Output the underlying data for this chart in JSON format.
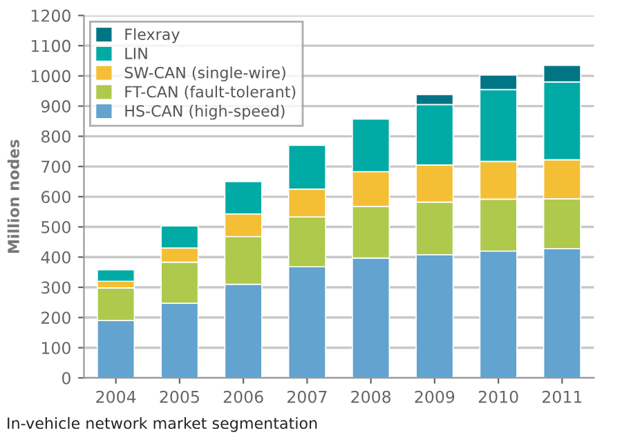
{
  "chart_data": {
    "type": "bar",
    "stacked": true,
    "ylabel": "Million nodes",
    "categories": [
      "2004",
      "2005",
      "2006",
      "2007",
      "2008",
      "2009",
      "2010",
      "2011"
    ],
    "series": [
      {
        "name": "HS-CAN (high-speed)",
        "color": "#62a3d0",
        "values": [
          190,
          247,
          310,
          368,
          397,
          408,
          420,
          428
        ]
      },
      {
        "name": "FT-CAN (fault-tolerant)",
        "color": "#aec94c",
        "values": [
          108,
          136,
          158,
          165,
          171,
          174,
          172,
          165
        ]
      },
      {
        "name": "SW-CAN (single-wire)",
        "color": "#f5bf35",
        "values": [
          22,
          47,
          75,
          92,
          115,
          123,
          125,
          129
        ]
      },
      {
        "name": "LIN",
        "color": "#00aaa5",
        "values": [
          38,
          73,
          107,
          145,
          174,
          200,
          238,
          258
        ]
      },
      {
        "name": "Flexray",
        "color": "#007585",
        "values": [
          null,
          null,
          null,
          null,
          null,
          33,
          48,
          55
        ]
      }
    ],
    "ylim": [
      0,
      1200
    ],
    "yticks": [
      0,
      100,
      200,
      300,
      400,
      500,
      600,
      700,
      800,
      900,
      1000,
      1100,
      1200
    ],
    "grid": "y",
    "legend": "top left",
    "annotations": [
      "In-vehicle network market segmentation"
    ]
  }
}
